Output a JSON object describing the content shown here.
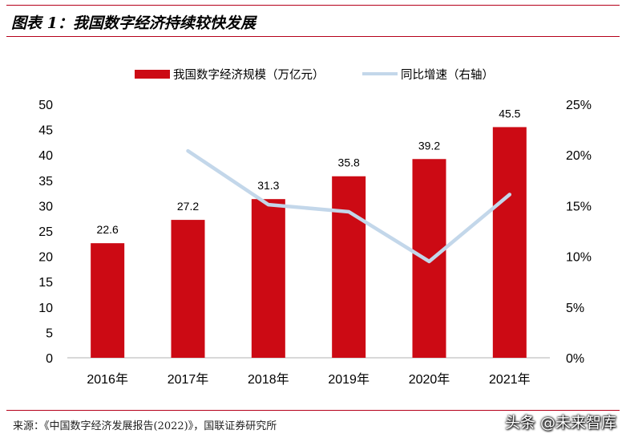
{
  "figure": {
    "title": "图表 1：我国数字经济持续较快发展",
    "source": "来源：《中国数字经济发展报告(2022)》，国联证券研究所",
    "watermark": "头条 @未来智库"
  },
  "colors": {
    "bar": "#cc0a14",
    "line": "#c3d7ea",
    "rule": "#b5001a"
  },
  "chart_data": {
    "type": "bar",
    "categories": [
      "2016年",
      "2017年",
      "2018年",
      "2019年",
      "2020年",
      "2021年"
    ],
    "series": [
      {
        "name": "我国数字经济规模（万亿元）",
        "type": "bar",
        "axis": "left",
        "values": [
          22.6,
          27.2,
          31.3,
          35.8,
          39.2,
          45.5
        ],
        "labels": [
          "22.6",
          "27.2",
          "31.3",
          "35.8",
          "39.2",
          "45.5"
        ]
      },
      {
        "name": "同比增速（右轴）",
        "type": "line",
        "axis": "right",
        "values": [
          null,
          20.4,
          15.1,
          14.4,
          9.5,
          16.1
        ]
      }
    ],
    "y_left": {
      "min": 0,
      "max": 50,
      "ticks": [
        "0",
        "5",
        "10",
        "15",
        "20",
        "25",
        "30",
        "35",
        "40",
        "45",
        "50"
      ]
    },
    "y_right": {
      "min": 0,
      "max": 25,
      "ticks": [
        "0%",
        "5%",
        "10%",
        "15%",
        "20%",
        "25%"
      ]
    },
    "grid": false,
    "legend": "top-center"
  }
}
